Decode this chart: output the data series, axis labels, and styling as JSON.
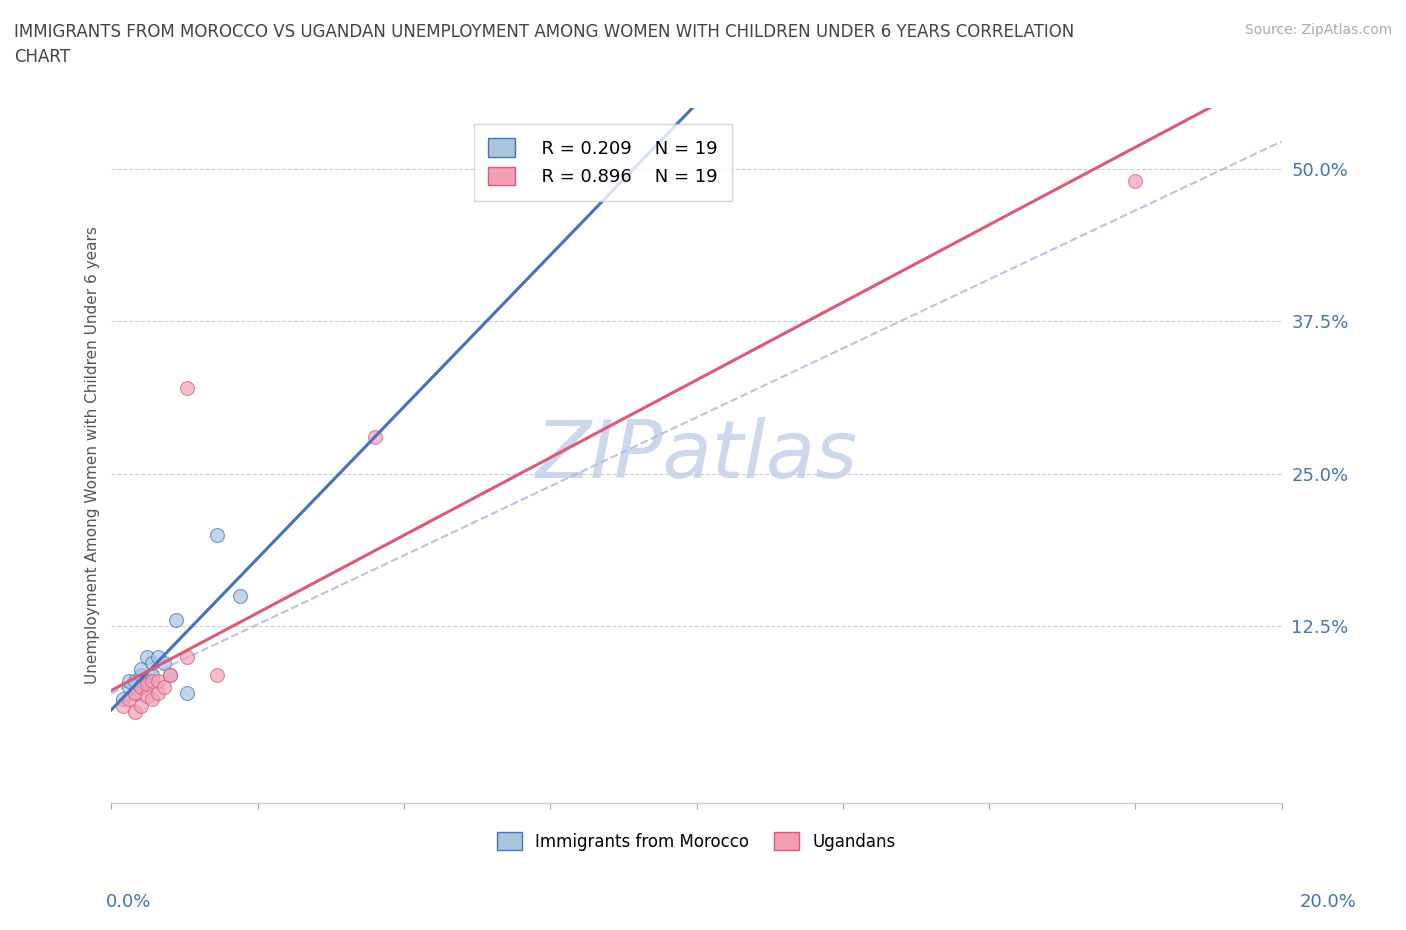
{
  "title": "IMMIGRANTS FROM MOROCCO VS UGANDAN UNEMPLOYMENT AMONG WOMEN WITH CHILDREN UNDER 6 YEARS CORRELATION\nCHART",
  "source": "Source: ZipAtlas.com",
  "ylabel": "Unemployment Among Women with Children Under 6 years",
  "yticks": [
    0.0,
    0.125,
    0.25,
    0.375,
    0.5
  ],
  "ytick_labels": [
    "",
    "12.5%",
    "25.0%",
    "37.5%",
    "50.0%"
  ],
  "xlim": [
    0.0,
    0.2
  ],
  "ylim": [
    -0.02,
    0.55
  ],
  "legend_blue_r": "R = 0.209",
  "legend_blue_n": "N = 19",
  "legend_pink_r": "R = 0.896",
  "legend_pink_n": "N = 19",
  "watermark": "ZIPatlas",
  "blue_scatter_x": [
    0.002,
    0.003,
    0.003,
    0.004,
    0.004,
    0.005,
    0.005,
    0.005,
    0.006,
    0.006,
    0.007,
    0.007,
    0.008,
    0.009,
    0.01,
    0.011,
    0.013,
    0.018,
    0.022
  ],
  "blue_scatter_y": [
    0.065,
    0.075,
    0.08,
    0.07,
    0.08,
    0.075,
    0.085,
    0.09,
    0.08,
    0.1,
    0.085,
    0.095,
    0.1,
    0.095,
    0.085,
    0.13,
    0.07,
    0.2,
    0.15
  ],
  "pink_scatter_x": [
    0.002,
    0.003,
    0.004,
    0.004,
    0.005,
    0.005,
    0.006,
    0.006,
    0.007,
    0.007,
    0.008,
    0.008,
    0.009,
    0.01,
    0.013,
    0.013,
    0.018,
    0.045,
    0.175
  ],
  "pink_scatter_y": [
    0.06,
    0.065,
    0.055,
    0.07,
    0.06,
    0.075,
    0.068,
    0.078,
    0.065,
    0.08,
    0.07,
    0.08,
    0.075,
    0.085,
    0.1,
    0.32,
    0.085,
    0.28,
    0.49
  ],
  "blue_color": "#aac4e0",
  "pink_color": "#f4a0b4",
  "blue_line_color": "#4472c4",
  "pink_line_color": "#e05878",
  "dashed_line_color": "#aabbdd",
  "title_color": "#444444",
  "source_color": "#aaaaaa",
  "tick_color": "#4472c4",
  "grid_color": "#ccccdd",
  "watermark_color": "#ccd8ee",
  "legend_frame_color": "#cccccc"
}
